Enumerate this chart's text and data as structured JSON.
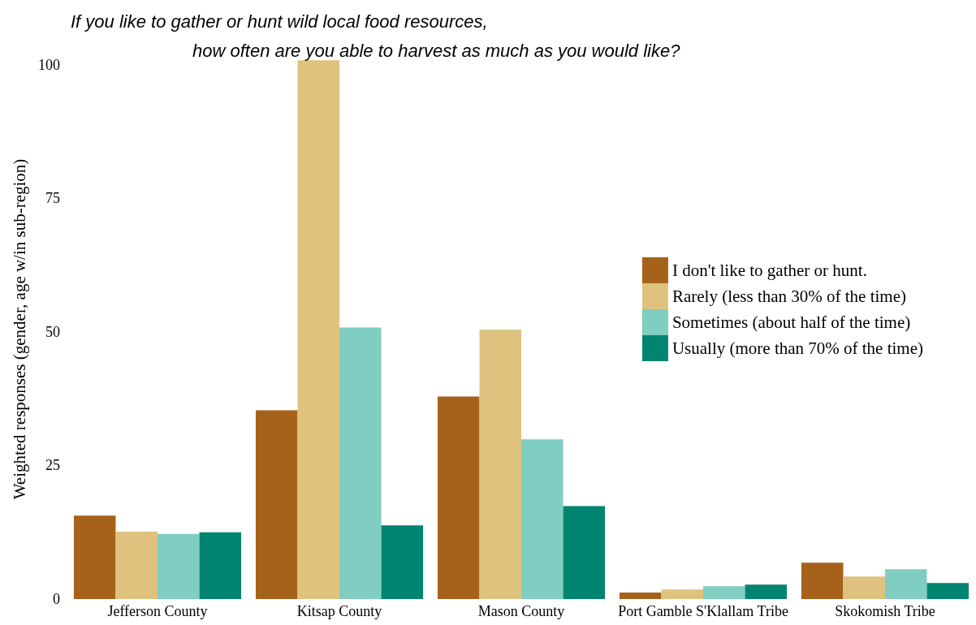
{
  "chart_data": {
    "type": "bar",
    "title": "If you like to gather or hunt wild local food resources,\nhow often are you able to harvest as much as you would like?",
    "ylabel": "Weighted responses (gender, age w/in sub-region)",
    "categories": [
      "Jefferson County",
      "Kitsap County",
      "Mason County",
      "Port Gamble S'Klallam Tribe",
      "Skokomish Tribe"
    ],
    "series": [
      {
        "name": "I don't like to gather or hunt.",
        "color": "#a6611a",
        "values": [
          15.6,
          35.3,
          37.9,
          1.2,
          6.8
        ]
      },
      {
        "name": "Rarely (less than 30% of the time)",
        "color": "#dfc27d",
        "values": [
          12.6,
          100.8,
          50.4,
          1.8,
          4.2
        ]
      },
      {
        "name": "Sometimes (about half of the time)",
        "color": "#80cdc1",
        "values": [
          12.2,
          50.8,
          29.9,
          2.4,
          5.6
        ]
      },
      {
        "name": "Usually (more than 70% of the time)",
        "color": "#018571",
        "values": [
          12.5,
          13.8,
          17.4,
          2.7,
          3.0
        ]
      }
    ],
    "ylim": [
      0,
      101
    ],
    "yticks": [
      0,
      25,
      50,
      75,
      100
    ],
    "grid": false,
    "legend": "right"
  }
}
